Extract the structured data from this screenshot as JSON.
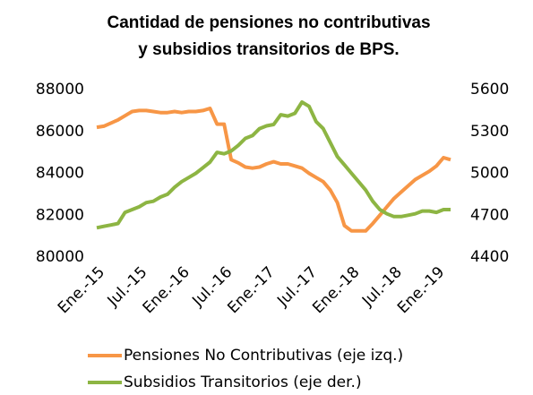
{
  "chart_data": {
    "type": "line",
    "title": [
      "Cantidad de pensiones no contributivas",
      "y subsidios transitorios de BPS."
    ],
    "categories": [
      "Ene.-15",
      null,
      null,
      null,
      null,
      null,
      "Jul.-15",
      null,
      null,
      null,
      null,
      null,
      "Ene.-16",
      null,
      null,
      null,
      null,
      null,
      "Jul.-16",
      null,
      null,
      null,
      null,
      null,
      "Ene.-17",
      null,
      null,
      null,
      null,
      null,
      "Jul.-17",
      null,
      null,
      null,
      null,
      null,
      "Ene.-18",
      null,
      null,
      null,
      null,
      null,
      "Jul.-18",
      null,
      null,
      null,
      null,
      null,
      "Ene.-19",
      null,
      null
    ],
    "series": [
      {
        "name": "Pensiones No Contributivas (eje izq.)",
        "color": "#f79646",
        "values": [
          86200,
          86250,
          86400,
          86550,
          86750,
          86950,
          87000,
          87000,
          86950,
          86900,
          86900,
          86950,
          86900,
          86950,
          86950,
          87000,
          87100,
          86350,
          86350,
          84650,
          84500,
          84300,
          84250,
          84300,
          84450,
          84550,
          84450,
          84450,
          84350,
          84250,
          84000,
          83800,
          83600,
          83200,
          82600,
          81500,
          81250,
          81250,
          81250,
          81600,
          82000,
          82400,
          82800,
          83100,
          83400,
          83700,
          83900,
          84100,
          84350,
          84750,
          84650
        ]
      },
      {
        "name": "Subsidios Transitorios (eje der.)",
        "color": "#8db543",
        "axis": "y2",
        "values": [
          4610,
          4620,
          4630,
          4640,
          4720,
          4740,
          4760,
          4790,
          4800,
          4830,
          4850,
          4900,
          4940,
          4970,
          5000,
          5040,
          5080,
          5150,
          5140,
          5160,
          5200,
          5250,
          5270,
          5320,
          5340,
          5350,
          5420,
          5410,
          5430,
          5510,
          5480,
          5370,
          5320,
          5220,
          5120,
          5060,
          5000,
          4940,
          4880,
          4800,
          4740,
          4710,
          4690,
          4690,
          4700,
          4710,
          4730,
          4730,
          4720,
          4740,
          4740
        ]
      }
    ],
    "ylim": [
      80000,
      88000
    ],
    "yticks": [
      80000,
      82000,
      84000,
      86000,
      88000
    ],
    "y2lim": [
      4400,
      5600
    ],
    "y2ticks": [
      4400,
      4700,
      5000,
      5300,
      5600
    ]
  }
}
